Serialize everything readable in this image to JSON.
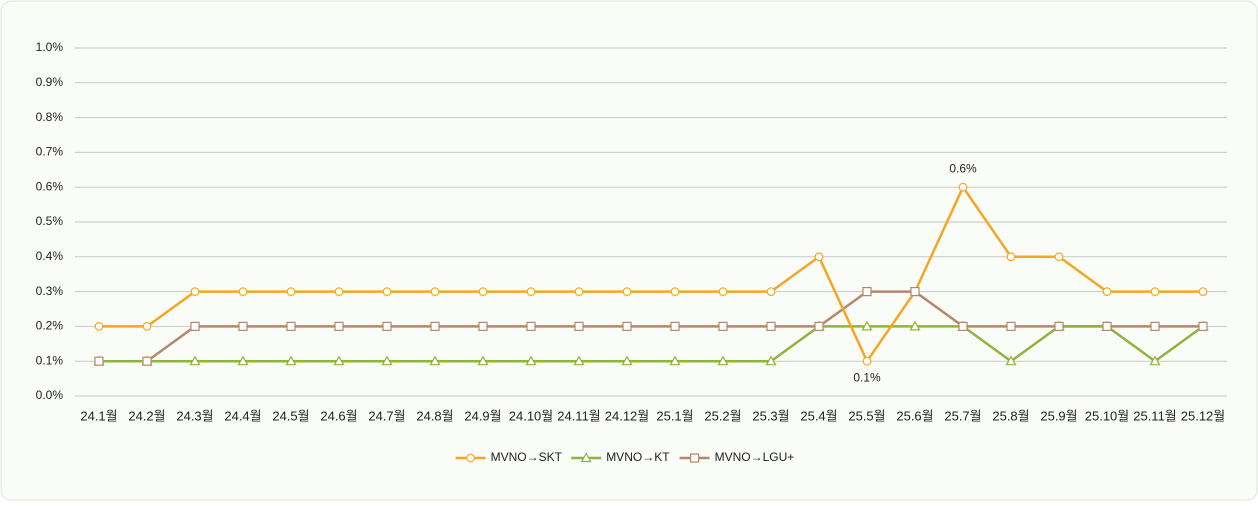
{
  "chart_data": {
    "type": "line",
    "categories": [
      "24.1월",
      "24.2월",
      "24.3월",
      "24.4월",
      "24.5월",
      "24.6월",
      "24.7월",
      "24.8월",
      "24.9월",
      "24.10월",
      "24.11월",
      "24.12월",
      "25.1월",
      "25.2월",
      "25.3월",
      "25.4월",
      "25.5월",
      "25.6월",
      "25.7월",
      "25.8월",
      "25.9월",
      "25.10월",
      "25.11월",
      "25.12월"
    ],
    "series": [
      {
        "name": "MVNO→SKT",
        "color": "#f5a623",
        "marker": "circle",
        "values": [
          0.2,
          0.2,
          0.3,
          0.3,
          0.3,
          0.3,
          0.3,
          0.3,
          0.3,
          0.3,
          0.3,
          0.3,
          0.3,
          0.3,
          0.3,
          0.4,
          0.1,
          0.3,
          0.6,
          0.4,
          0.4,
          0.3,
          0.3,
          0.3
        ],
        "value_labels": [
          null,
          null,
          null,
          null,
          null,
          null,
          null,
          null,
          null,
          null,
          null,
          null,
          null,
          null,
          null,
          null,
          "0.1%",
          null,
          "0.6%",
          null,
          null,
          null,
          null,
          null
        ]
      },
      {
        "name": "MVNO→KT",
        "color": "#8db53c",
        "marker": "triangle",
        "values": [
          0.1,
          0.1,
          0.1,
          0.1,
          0.1,
          0.1,
          0.1,
          0.1,
          0.1,
          0.1,
          0.1,
          0.1,
          0.1,
          0.1,
          0.1,
          0.2,
          0.2,
          0.2,
          0.2,
          0.1,
          0.2,
          0.2,
          0.1,
          0.2
        ]
      },
      {
        "name": "MVNO→LGU+",
        "color": "#b5876b",
        "marker": "square",
        "values": [
          0.1,
          0.1,
          0.2,
          0.2,
          0.2,
          0.2,
          0.2,
          0.2,
          0.2,
          0.2,
          0.2,
          0.2,
          0.2,
          0.2,
          0.2,
          0.2,
          0.3,
          0.3,
          0.2,
          0.2,
          0.2,
          0.2,
          0.2,
          0.2
        ]
      }
    ],
    "ylim": [
      0,
      1.0
    ],
    "yticks": [
      {
        "value": 0,
        "label": "0.0%"
      },
      {
        "value": 0.1,
        "label": "0.1%"
      },
      {
        "value": 0.2,
        "label": "0.2%"
      },
      {
        "value": 0.3,
        "label": "0.3%"
      },
      {
        "value": 0.4,
        "label": "0.4%"
      },
      {
        "value": 0.5,
        "label": "0.5%"
      },
      {
        "value": 0.6,
        "label": "0.6%"
      },
      {
        "value": 0.7,
        "label": "0.7%"
      },
      {
        "value": 0.8,
        "label": "0.8%"
      },
      {
        "value": 0.9,
        "label": "0.9%"
      },
      {
        "value": 1.0,
        "label": "1.0%"
      }
    ],
    "grid": true,
    "legend": "bottom"
  }
}
